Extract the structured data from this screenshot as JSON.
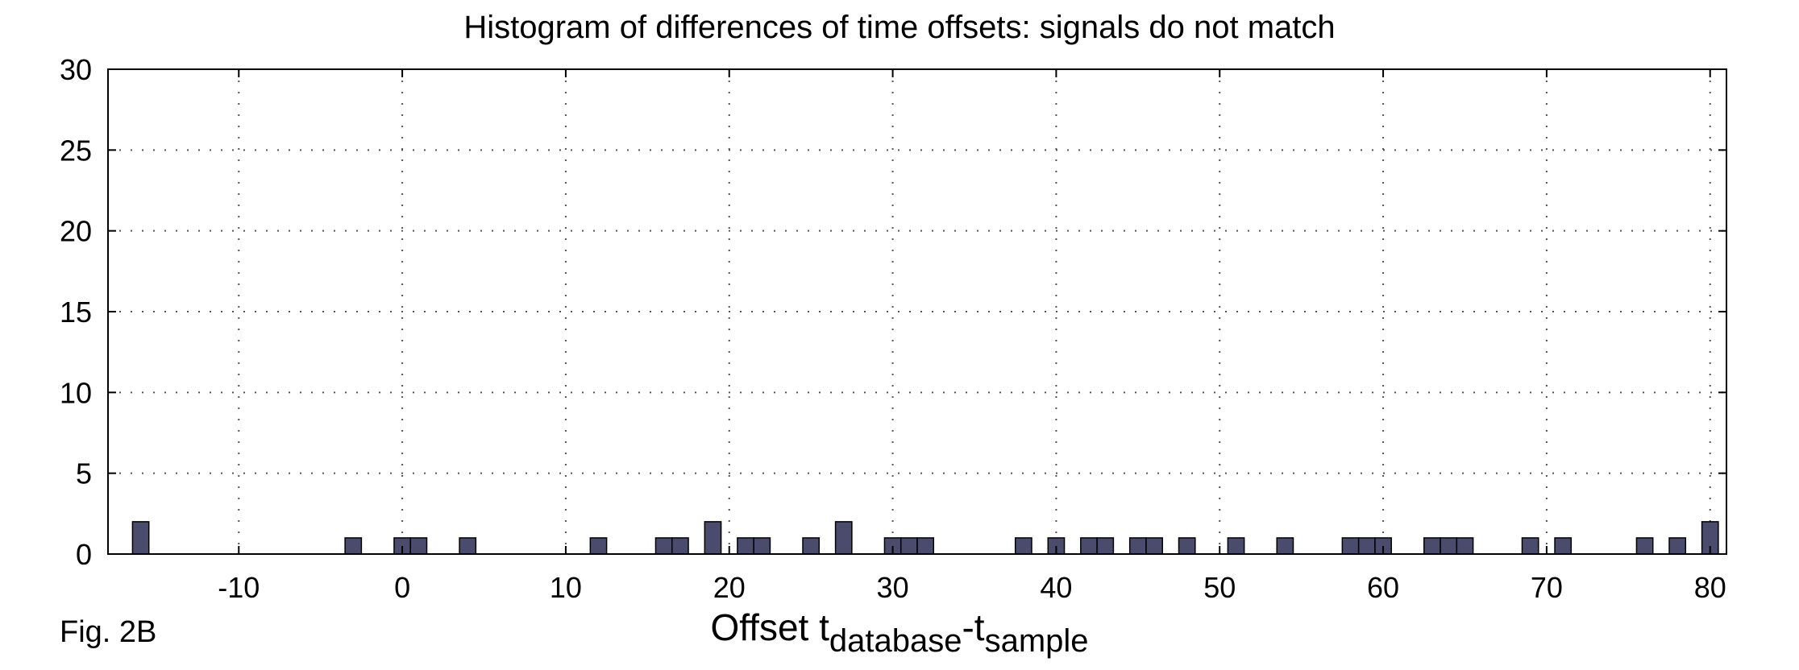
{
  "figure": {
    "title": "Histogram of differences of time offsets: signals do not match",
    "fig_label": "Fig. 2B",
    "xlabel_prefix": "Offset t",
    "xlabel_sub1": "database",
    "xlabel_mid": "-t",
    "xlabel_sub2": "sample"
  },
  "chart_data": {
    "type": "bar",
    "title": "Histogram of differences of time offsets: signals do not match",
    "xlabel": "Offset t_database - t_sample",
    "ylabel": "",
    "xlim": [
      -18,
      81
    ],
    "ylim": [
      0,
      30
    ],
    "xticks": [
      -10,
      0,
      10,
      20,
      30,
      40,
      50,
      60,
      70,
      80
    ],
    "yticks": [
      0,
      5,
      10,
      15,
      20,
      25,
      30
    ],
    "grid": true,
    "bin_width": 1,
    "bar_color": "#4b4b6e",
    "x": [
      -16,
      -3,
      0,
      1,
      4,
      12,
      16,
      17,
      19,
      21,
      22,
      25,
      27,
      30,
      31,
      32,
      38,
      40,
      42,
      43,
      45,
      46,
      48,
      51,
      54,
      58,
      59,
      60,
      63,
      64,
      65,
      69,
      71,
      76,
      78,
      80
    ],
    "values": [
      2,
      1,
      1,
      1,
      1,
      1,
      1,
      1,
      2,
      1,
      1,
      1,
      2,
      1,
      1,
      1,
      1,
      1,
      1,
      1,
      1,
      1,
      1,
      1,
      1,
      1,
      1,
      1,
      1,
      1,
      1,
      1,
      1,
      1,
      1,
      2
    ]
  }
}
